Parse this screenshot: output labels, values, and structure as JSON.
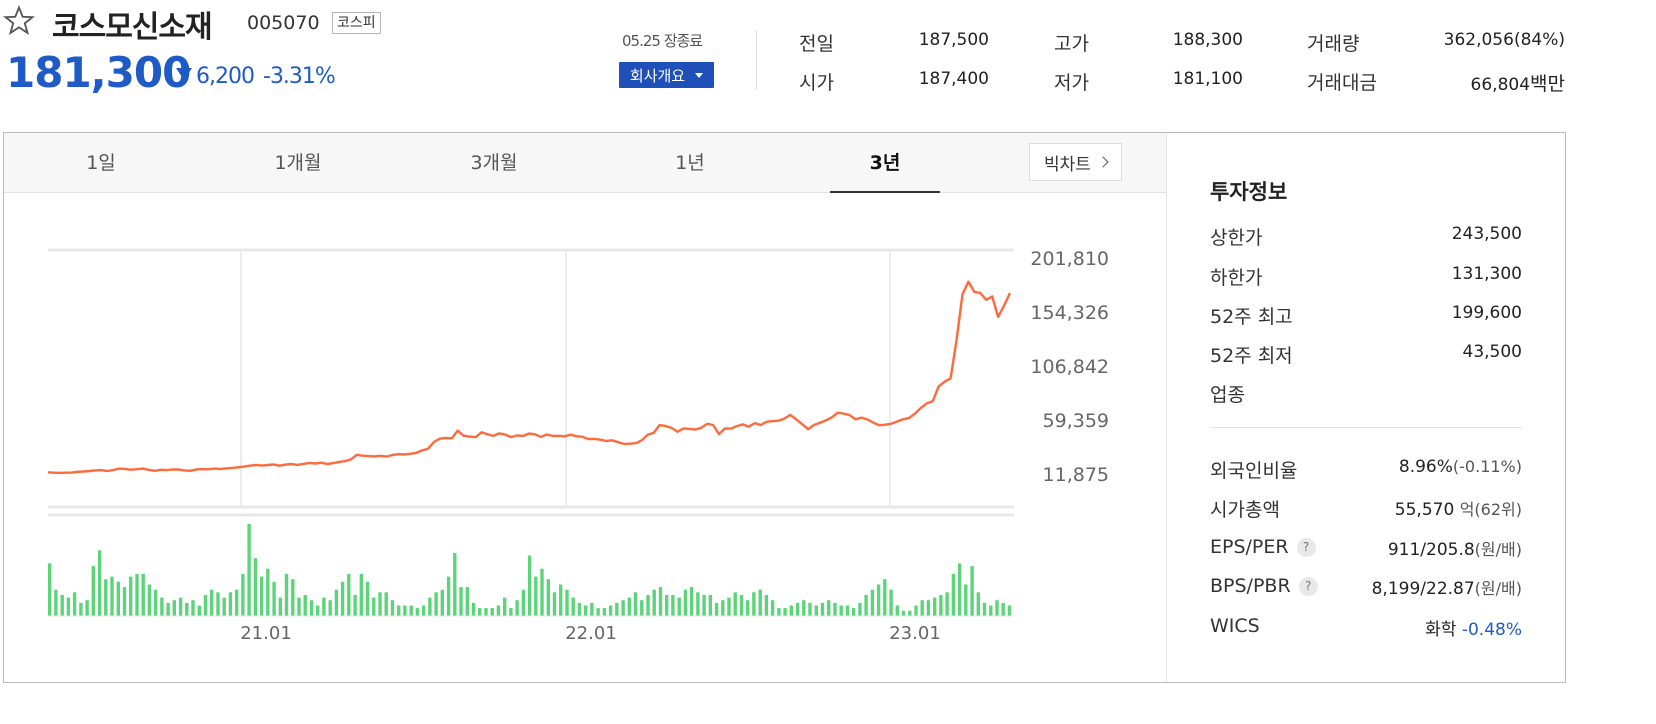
{
  "header": {
    "name": "코스모신소재",
    "code": "005070",
    "market": "코스피",
    "price": "181,300",
    "change": "6,200",
    "change_pct": "-3.31%",
    "status": "05.25 장종료",
    "company_button": "회사개요"
  },
  "quote": {
    "prev_label": "전일",
    "prev": "187,500",
    "open_label": "시가",
    "open": "187,400",
    "high_label": "고가",
    "high": "188,300",
    "low_label": "저가",
    "low": "181,100",
    "volume_label": "거래량",
    "volume": "362,056(84%)",
    "amount_label": "거래대금",
    "amount": "66,804",
    "amount_unit": "백만"
  },
  "tabs": [
    "1일",
    "1개월",
    "3개월",
    "1년",
    "3년"
  ],
  "active_tab": "3년",
  "bigchart_label": "빅차트",
  "colors": {
    "price_line": "#ff6a3d",
    "volume_bar": "#5dd47a",
    "up": "#e01f1f",
    "down": "#1f5bc7"
  },
  "chart_data": {
    "type": "line",
    "y_ticks": [
      "201,810",
      "154,326",
      "106,842",
      "59,359",
      "11,875"
    ],
    "ylim": [
      11875,
      201810
    ],
    "x_ticks": [
      "21.01",
      "22.01",
      "23.01"
    ],
    "price_series": [
      13400,
      13000,
      12900,
      13000,
      13100,
      13800,
      14100,
      14500,
      15000,
      15300,
      14400,
      15400,
      16600,
      16300,
      15700,
      16100,
      16600,
      15500,
      14700,
      15600,
      15300,
      15900,
      15800,
      15000,
      14700,
      15900,
      16200,
      16000,
      16600,
      16300,
      16800,
      17200,
      17800,
      18400,
      19200,
      19800,
      19300,
      19800,
      20200,
      19200,
      20100,
      20700,
      19900,
      20800,
      21600,
      21100,
      21800,
      20700,
      21400,
      22500,
      23100,
      24700,
      28800,
      28000,
      27600,
      27300,
      27900,
      27200,
      28600,
      29300,
      29000,
      29600,
      30400,
      32600,
      34000,
      40000,
      43000,
      43500,
      43300,
      50000,
      45500,
      44800,
      44200,
      48500,
      46800,
      45400,
      47600,
      46500,
      44300,
      45800,
      45300,
      47500,
      46800,
      44500,
      46600,
      45300,
      45500,
      45000,
      46500,
      45000,
      44700,
      42600,
      42700,
      42000,
      41000,
      41500,
      39800,
      38300,
      38500,
      39000,
      41500,
      46500,
      48000,
      55000,
      54000,
      52400,
      49000,
      52000,
      51500,
      51000,
      52400,
      56000,
      55000,
      47000,
      52000,
      51700,
      54000,
      55500,
      53500,
      56600,
      55000,
      57800,
      58400,
      58700,
      60600,
      63800,
      60000,
      55700,
      51400,
      55000,
      57000,
      59000,
      61700,
      65800,
      65000,
      63600,
      60000,
      61500,
      59800,
      57000,
      54700,
      55200,
      56000,
      58000,
      60000,
      61000,
      65000,
      70000,
      74000,
      76000,
      89000,
      93000,
      96000,
      130000,
      170000,
      181000,
      172000,
      171000,
      165000,
      168000,
      150000,
      160000,
      171000
    ],
    "volume_series": [
      20,
      10,
      8,
      7,
      9,
      5,
      6,
      19,
      25,
      14,
      15,
      13,
      11,
      15,
      16,
      16,
      12,
      10,
      7,
      5,
      6,
      7,
      5,
      6,
      4,
      8,
      10,
      9,
      7,
      9,
      10,
      16,
      35,
      22,
      15,
      18,
      13,
      7,
      16,
      14,
      7,
      8,
      6,
      4,
      7,
      6,
      10,
      13,
      16,
      8,
      16,
      13,
      7,
      9,
      9,
      6,
      4,
      4,
      4,
      3,
      4,
      7,
      9,
      10,
      15,
      24,
      11,
      11,
      5,
      3,
      3,
      3,
      4,
      7,
      3,
      6,
      10,
      23,
      15,
      18,
      14,
      9,
      12,
      10,
      7,
      5,
      4,
      5,
      3,
      3,
      4,
      5,
      6,
      7,
      9,
      6,
      8,
      10,
      11,
      8,
      8,
      7,
      10,
      11,
      9,
      8,
      8,
      5,
      6,
      7,
      9,
      8,
      6,
      9,
      10,
      8,
      6,
      3,
      3,
      4,
      5,
      6,
      5,
      4,
      5,
      6,
      5,
      4,
      4,
      3,
      5,
      8,
      10,
      12,
      14,
      10,
      4,
      2,
      2,
      4,
      6,
      6,
      7,
      8,
      9,
      16,
      20,
      12,
      19,
      9,
      5,
      4,
      6,
      5,
      4
    ]
  },
  "info": {
    "title": "투자정보",
    "upper_label": "상한가",
    "upper": "243,500",
    "lower_label": "하한가",
    "lower": "131,300",
    "high52_label": "52주 최고",
    "high52": "199,600",
    "low52_label": "52주 최저",
    "low52": "43,500",
    "industry_label": "업종",
    "foreign_label": "외국인비율",
    "foreign": "8.96%",
    "foreign_chg": "(-0.11%)",
    "mcap_label": "시가총액",
    "mcap": "55,570",
    "mcap_unit": "억",
    "mcap_rank": "(62위)",
    "eps_label": "EPS/PER",
    "eps": "911/205.8",
    "eps_unit": "(원/배)",
    "bps_label": "BPS/PBR",
    "bps": "8,199/22.87",
    "bps_unit": "(원/배)",
    "wics_label": "WICS",
    "wics_sector": "화학",
    "wics_chg": "-0.48%"
  }
}
